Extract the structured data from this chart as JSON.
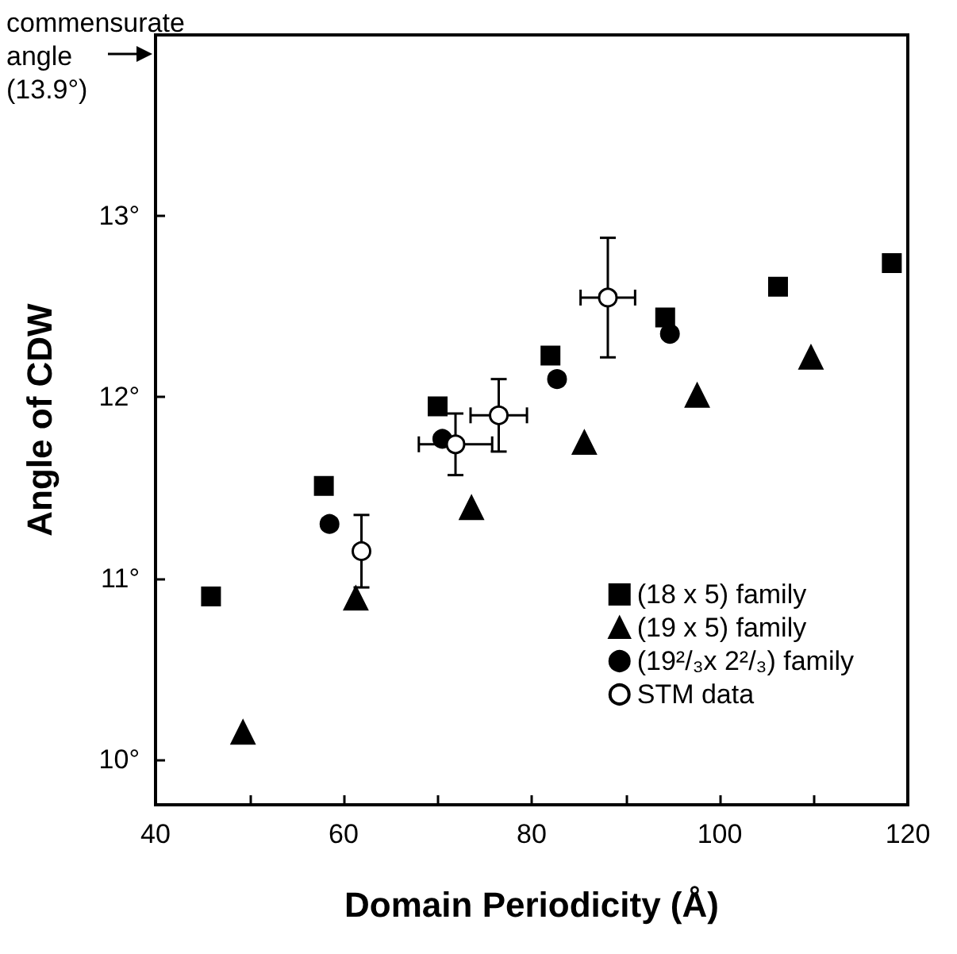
{
  "chart_data": {
    "type": "scatter",
    "xlabel": "Domain Periodicity (Å)",
    "ylabel": "Angle of CDW",
    "xlim": [
      40,
      120
    ],
    "ylim": [
      9.75,
      14
    ],
    "xticks": [
      40,
      {
        "value": 50,
        "label": null
      },
      60,
      {
        "value": 70,
        "label": null
      },
      80,
      {
        "value": 90,
        "label": null
      },
      100,
      {
        "value": 110,
        "label": null
      },
      120
    ],
    "yticks": [
      {
        "value": 10,
        "label": "10°"
      },
      {
        "value": 11,
        "label": "11°"
      },
      {
        "value": 12,
        "label": "12°"
      },
      {
        "value": 13,
        "label": "13°"
      }
    ],
    "legend": "bottom right",
    "grid": false,
    "annotations": [
      "commensurate\nangle\n(13.9°)"
    ],
    "series": [
      {
        "name": "(18 x 5) family",
        "color": "#000000",
        "marker": "square",
        "x": [
          45.9,
          57.9,
          70.0,
          82.0,
          94.2,
          106.2,
          118.3
        ],
        "values": [
          10.9,
          11.51,
          11.95,
          12.23,
          12.44,
          12.61,
          12.74
        ]
      },
      {
        "name": "(19 x 5) family",
        "color": "#000000",
        "marker": "triangle",
        "x": [
          49.3,
          61.3,
          73.6,
          85.6,
          97.6,
          109.7
        ],
        "values": [
          10.15,
          10.89,
          11.39,
          11.75,
          12.01,
          12.22
        ]
      },
      {
        "name": "(19²/₃x 2²/₃) family",
        "color": "#000000",
        "marker": "circle",
        "x": [
          58.5,
          70.5,
          82.7,
          94.7
        ],
        "values": [
          11.3,
          11.77,
          12.1,
          12.35
        ]
      },
      {
        "name": "STM data",
        "color": "#ffffff",
        "marker": "circle",
        "x": [
          61.9,
          71.9,
          76.5,
          88.1
        ],
        "values": [
          11.15,
          11.74,
          11.9,
          12.55
        ],
        "errors": [
          0.2,
          0.17,
          0.2,
          0.33
        ],
        "xerrors": [
          null,
          3.9,
          3,
          2.9
        ]
      }
    ]
  }
}
